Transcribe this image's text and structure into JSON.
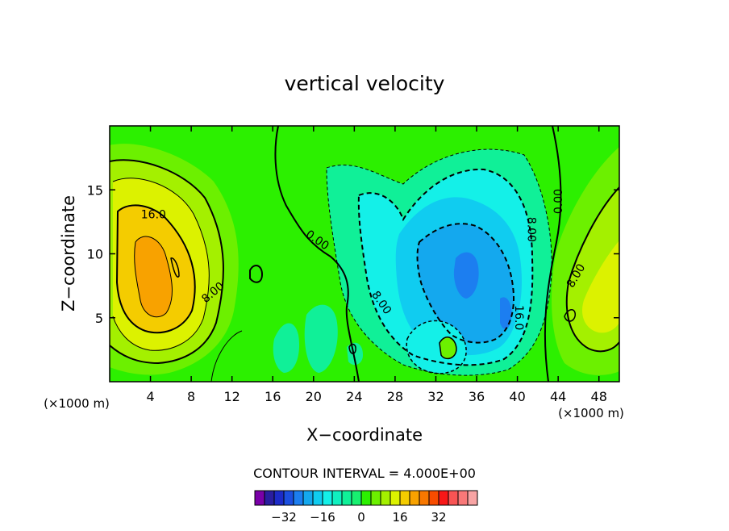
{
  "chart_data": {
    "type": "contour",
    "title": "vertical velocity",
    "xlabel": "X−coordinate",
    "ylabel": "Z−coordinate",
    "x_unit_left": "(×1000 m)",
    "x_unit_right": "(×1000 m)",
    "xlim": [
      0,
      50
    ],
    "ylim": [
      0,
      20
    ],
    "x_ticks": [
      4,
      8,
      12,
      16,
      20,
      24,
      28,
      32,
      36,
      40,
      44,
      48
    ],
    "y_ticks": [
      5,
      10,
      15
    ],
    "contour_interval_text": "CONTOUR INTERVAL = 4.000E+00",
    "contour_labels": [
      {
        "text": "16.0",
        "x": 4.3,
        "y": 13.1,
        "rot": 0
      },
      {
        "text": "8.00",
        "x": 10.1,
        "y": 7.0,
        "rot": -40
      },
      {
        "text": "0.00",
        "x": 20.4,
        "y": 11.1,
        "rot": 35
      },
      {
        "text": "8.00",
        "x": 26.7,
        "y": 6.2,
        "rot": 55
      },
      {
        "text": "8.00",
        "x": 41.4,
        "y": 11.9,
        "rot": 90
      },
      {
        "text": "16.0",
        "x": 40.2,
        "y": 5.0,
        "rot": 90
      },
      {
        "text": "0.00",
        "x": 44.0,
        "y": 14.1,
        "rot": -90
      },
      {
        "text": "8.00",
        "x": 45.7,
        "y": 8.3,
        "rot": -60
      }
    ],
    "colorbar": {
      "colors": [
        "#7a00a8",
        "#2a1ea0",
        "#1c2bc8",
        "#1b4fe0",
        "#1c7ef0",
        "#14a8ee",
        "#10ccf0",
        "#14f0e8",
        "#10f0c0",
        "#10f098",
        "#18f070",
        "#2cf000",
        "#6cf000",
        "#a4f000",
        "#dcf200",
        "#f4cc00",
        "#f8a200",
        "#f87800",
        "#f84c00",
        "#f81818",
        "#f85454",
        "#f87878",
        "#f8a4a4"
      ],
      "tick_labels": [
        "−32",
        "−16",
        "0",
        "16",
        "32"
      ],
      "tick_values": [
        -32,
        -16,
        0,
        16,
        32
      ]
    },
    "field_features": [
      {
        "sign": "positive",
        "x": 4.5,
        "z": 8.5,
        "max_level": 24
      },
      {
        "sign": "positive",
        "x": 46,
        "z": 6,
        "max_level": 12
      },
      {
        "sign": "negative",
        "x": 35,
        "z": 8,
        "min_level": -20
      },
      {
        "sign": "negative",
        "x": 32,
        "z": 2.5,
        "min_level": -16
      }
    ]
  }
}
